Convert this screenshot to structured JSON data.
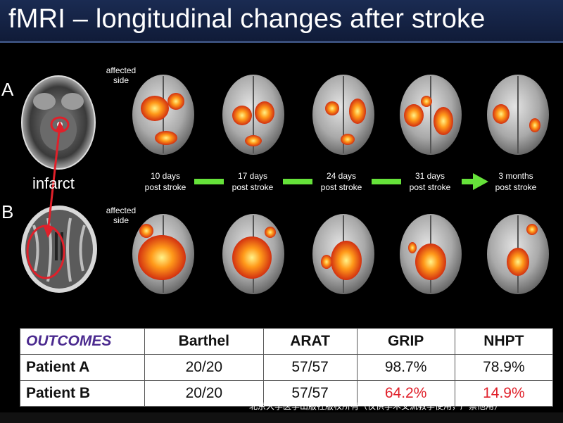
{
  "title": "fMRI – longitudinal changes after stroke",
  "rows": [
    {
      "label": "A",
      "side_label_line1": "affected",
      "side_label_line2": "side"
    },
    {
      "label": "B",
      "side_label_line1": "affected",
      "side_label_line2": "side"
    }
  ],
  "infarct_label": "infarct",
  "timepoints": [
    {
      "line1": "10 days",
      "line2": "post stroke"
    },
    {
      "line1": "17 days",
      "line2": "post stroke"
    },
    {
      "line1": "24 days",
      "line2": "post stroke"
    },
    {
      "line1": "31 days",
      "line2": "post stroke"
    },
    {
      "line1": "3 months",
      "line2": "post stroke"
    }
  ],
  "colors": {
    "arrow": "#66e23a",
    "accent_red": "#e0202a",
    "outcomes_purple": "#4b2a8f",
    "title_bar": "#14224a"
  },
  "table": {
    "headers": [
      "OUTCOMES",
      "Barthel",
      "ARAT",
      "GRIP",
      "NHPT"
    ],
    "rows": [
      {
        "name": "Patient A",
        "values": [
          "20/20",
          "57/57",
          "98.7%",
          "78.9%"
        ]
      },
      {
        "name": "Patient B",
        "values": [
          "20/20",
          "57/57",
          "64.2%",
          "14.9%"
        ]
      }
    ]
  },
  "watermark": "北京大学医学出版社版权所有（仅供学术交流教学使用，严禁他用）"
}
